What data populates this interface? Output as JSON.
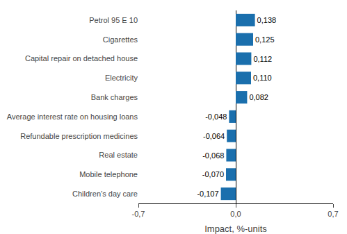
{
  "chart_data": {
    "type": "bar",
    "orientation": "horizontal",
    "categories": [
      "Children’s day care",
      "Mobile telephone",
      "Real estate",
      "Refundable prescription medicines",
      "Average interest rate on housing loans",
      "Bank charges",
      "Electricity",
      "Capital repair on detached house",
      "Cigarettes",
      "Petrol 95 E 10"
    ],
    "values": [
      -0.107,
      -0.07,
      -0.068,
      -0.064,
      -0.048,
      0.082,
      0.11,
      0.112,
      0.125,
      0.138
    ],
    "value_labels": [
      "-0,107",
      "-0,070",
      "-0,068",
      "-0,064",
      "-0,048",
      "0,082",
      "0,110",
      "0,112",
      "0,125",
      "0,138"
    ],
    "data_labels": true,
    "color": "#1a6fad",
    "xlabel": "Impact, %-units",
    "xlim": [
      -0.7,
      0.7
    ],
    "xticks": [
      {
        "value": -0.7,
        "label": "-0,7"
      },
      {
        "value": 0.0,
        "label": "0,0"
      },
      {
        "value": 0.7,
        "label": "0,7"
      }
    ],
    "grid": true
  }
}
